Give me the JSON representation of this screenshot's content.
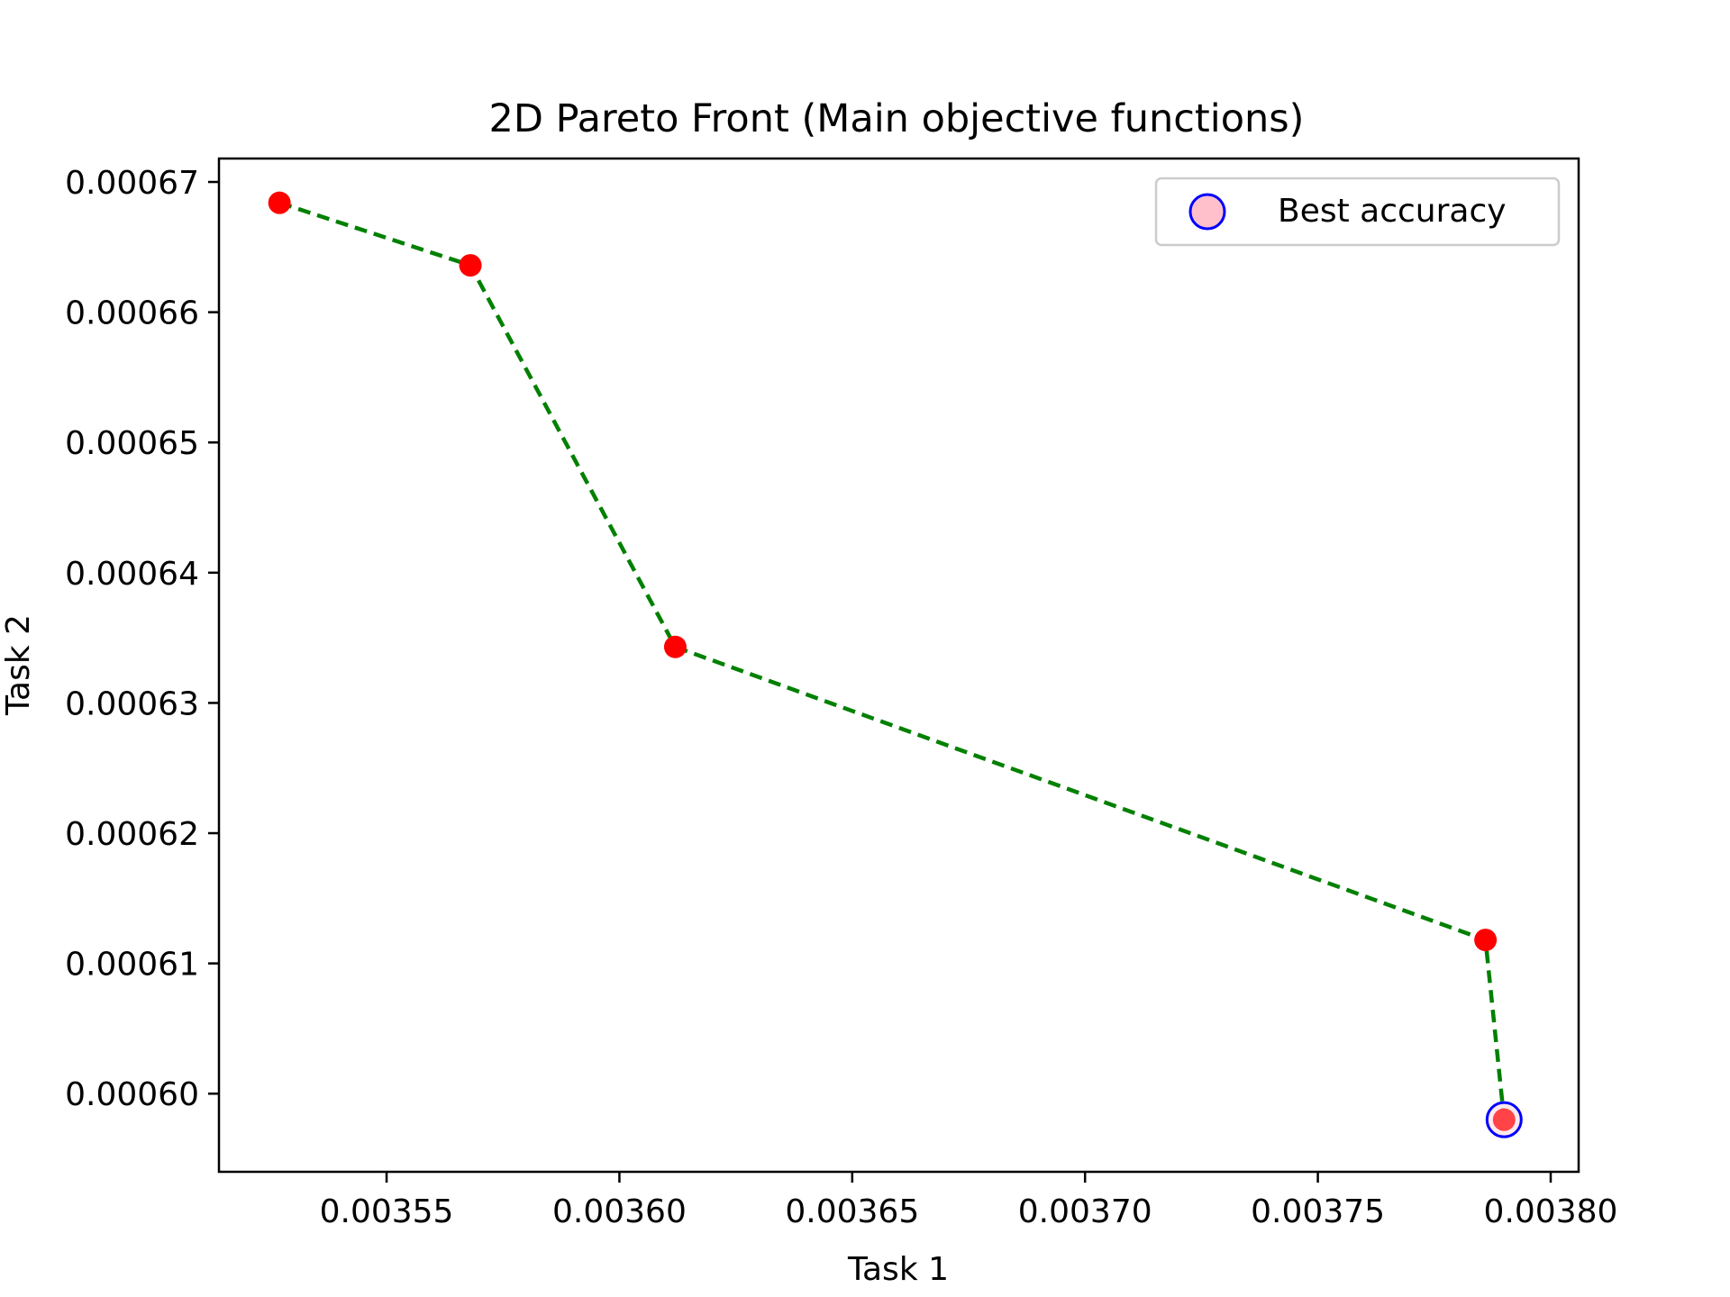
{
  "chart_data": {
    "type": "scatter",
    "title": "2D Pareto Front (Main objective functions)",
    "xlabel": "Task 1",
    "ylabel": "Task 2",
    "xlim": [
      0.003514,
      0.003806
    ],
    "ylim": [
      0.000594,
      0.0006718
    ],
    "xticks": [
      0.00355,
      0.0036,
      0.00365,
      0.0037,
      0.00375,
      0.0038
    ],
    "xtick_labels": [
      "0.00355",
      "0.00360",
      "0.00365",
      "0.00370",
      "0.00375",
      "0.00380"
    ],
    "yticks": [
      0.0006,
      0.00061,
      0.00062,
      0.00063,
      0.00064,
      0.00065,
      0.00066,
      0.00067
    ],
    "ytick_labels": [
      "0.00060",
      "0.00061",
      "0.00062",
      "0.00063",
      "0.00064",
      "0.00065",
      "0.00066",
      "0.00067"
    ],
    "grid": false,
    "series": [
      {
        "name": "Pareto front",
        "style": "dashed-line-with-markers",
        "line_color": "#008000",
        "marker_color": "#ff0000",
        "x": [
          0.003527,
          0.003568,
          0.003612,
          0.003786,
          0.00379
        ],
        "y": [
          0.0006684,
          0.0006636,
          0.0006343,
          0.0006118,
          0.000598
        ]
      },
      {
        "name": "Best accuracy",
        "style": "open-circle",
        "fill_color": "#ffc0cb",
        "edge_color": "#0000ff",
        "x": [
          0.00379
        ],
        "y": [
          0.000598
        ]
      }
    ],
    "legend": {
      "position": "top-right",
      "entries": [
        "Best accuracy"
      ]
    }
  }
}
